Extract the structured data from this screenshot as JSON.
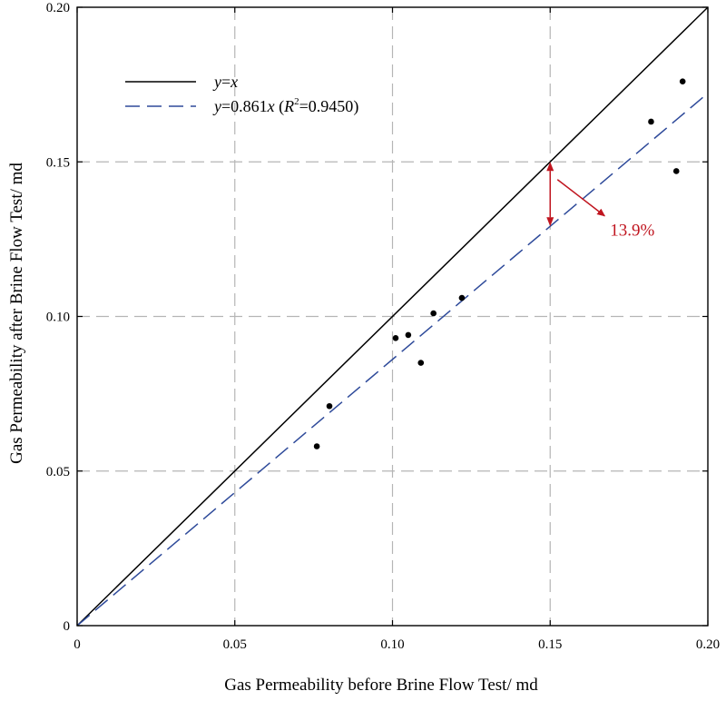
{
  "chart_data": {
    "type": "scatter",
    "title": "",
    "xlabel": "Gas Permeability before Brine Flow Test/ md",
    "ylabel": "Gas Permeability after Brine Flow Test/ md",
    "xlim": [
      0,
      0.2
    ],
    "ylim": [
      0,
      0.2
    ],
    "grid": true,
    "x_ticks": [
      {
        "value": 0,
        "label": "0"
      },
      {
        "value": 0.05,
        "label": "0.05"
      },
      {
        "value": 0.1,
        "label": "0.10"
      },
      {
        "value": 0.15,
        "label": "0.15"
      },
      {
        "value": 0.2,
        "label": "0.20"
      }
    ],
    "y_ticks": [
      {
        "value": 0,
        "label": "0"
      },
      {
        "value": 0.05,
        "label": "0.05"
      },
      {
        "value": 0.1,
        "label": "0.10"
      },
      {
        "value": 0.15,
        "label": "0.15"
      },
      {
        "value": 0.2,
        "label": "0.20"
      }
    ],
    "series": [
      {
        "name": "data",
        "kind": "points",
        "color": "#000000",
        "x": [
          0.076,
          0.08,
          0.101,
          0.105,
          0.109,
          0.113,
          0.122,
          0.182,
          0.19,
          0.192
        ],
        "y": [
          0.058,
          0.071,
          0.093,
          0.094,
          0.085,
          0.101,
          0.106,
          0.163,
          0.147,
          0.176
        ]
      },
      {
        "name": "y=x",
        "kind": "line",
        "slope": 1.0,
        "color": "#000000",
        "dash": "solid"
      },
      {
        "name": "y=0.861x (R²=0.9450)",
        "kind": "line",
        "slope": 0.861,
        "color": "#2e4a9a",
        "dash": "dashed"
      }
    ],
    "legend": {
      "position": "top-left",
      "entries": [
        {
          "y_var": "y",
          "rest": "=",
          "x_var": "x",
          "kind": "solid"
        },
        {
          "y_var": "y",
          "rest": "=0.861",
          "x_var": "x",
          "r_label": "R",
          "r_sup": "2",
          "r_value": "=0.9450",
          "kind": "dashed"
        }
      ]
    },
    "annotation": {
      "x": 0.15,
      "y_top": 0.15,
      "y_bottom": 0.12915,
      "label": "13.9%",
      "color": "#c0151f"
    }
  }
}
